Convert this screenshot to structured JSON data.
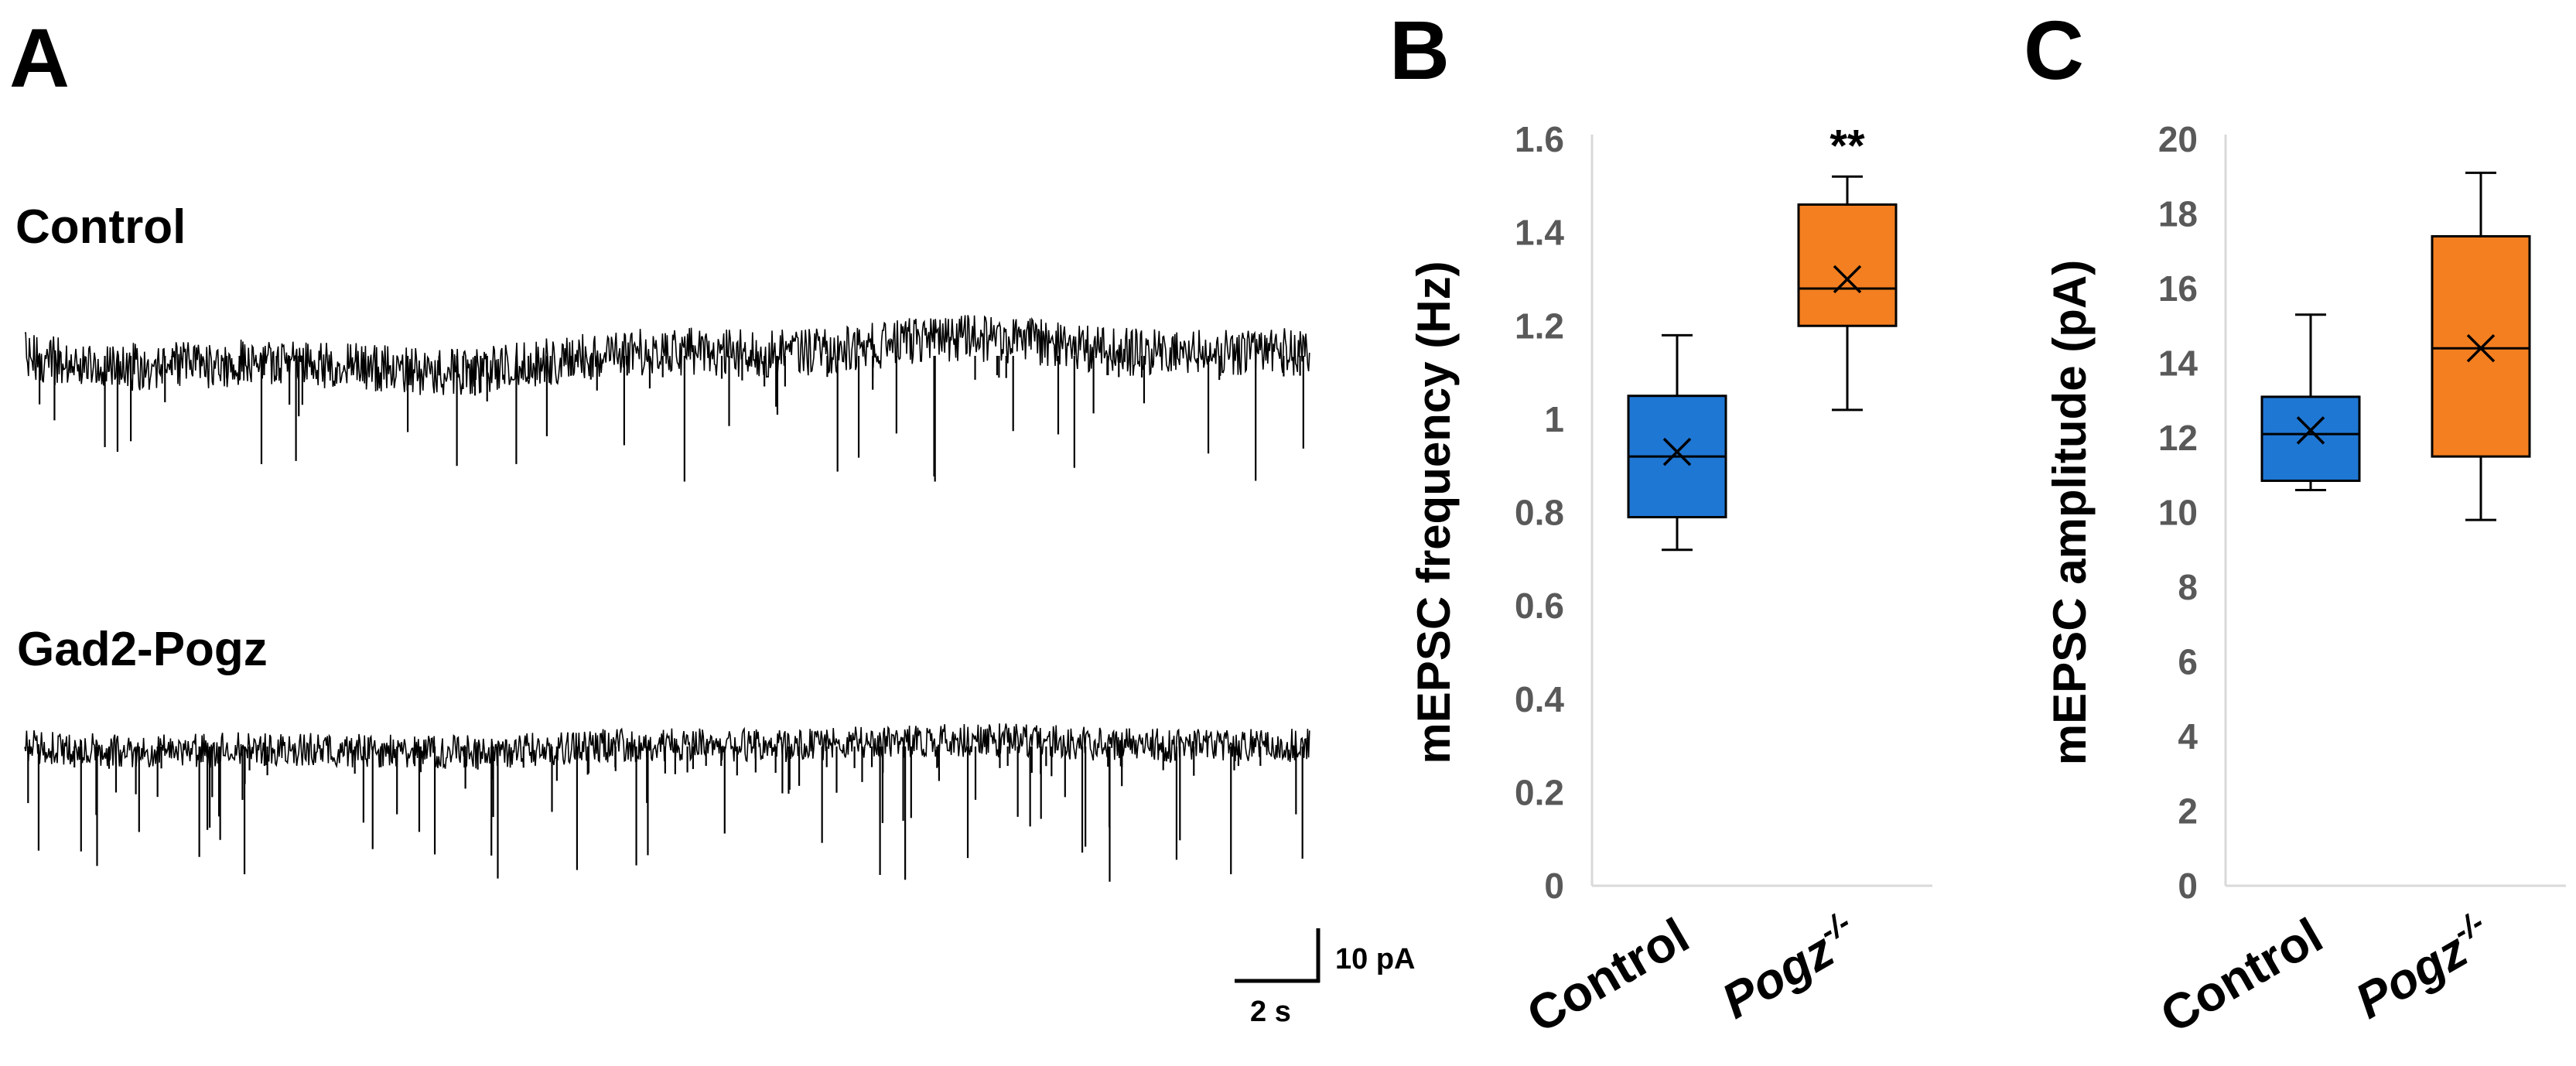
{
  "figure": {
    "panel_labels": [
      "A",
      "B",
      "C"
    ]
  },
  "traces": {
    "control_label": "Control",
    "gad2_label": "Gad2-Pogz",
    "scale_bar": {
      "amplitude_label": "10 pA",
      "time_label": "2 s"
    }
  },
  "chart_data": [
    {
      "panel": "B",
      "type": "box",
      "title": "",
      "ylabel": "mEPSC frequency (Hz)",
      "ylim": [
        0,
        1.6
      ],
      "yticks": [
        0,
        0.2,
        0.4,
        0.6,
        0.8,
        1,
        1.2,
        1.4,
        1.6
      ],
      "ytick_labels": [
        "0",
        "0.2",
        "0.4",
        "0.6",
        "0.8",
        "1",
        "1.2",
        "1.4",
        "1.6"
      ],
      "categories": [
        {
          "name": "Control",
          "base": "Control",
          "sup": "",
          "italic": false
        },
        {
          "name": "Pogz-/-",
          "base": "Pogz",
          "sup": "-/-",
          "italic": true
        }
      ],
      "series": [
        {
          "name": "Control",
          "color": "#1f77d4",
          "min": 0.72,
          "q1": 0.79,
          "median": 0.92,
          "q3": 1.05,
          "max": 1.18,
          "mean": 0.93
        },
        {
          "name": "Pogz-/-",
          "color": "#f47f20",
          "min": 1.02,
          "q1": 1.2,
          "median": 1.28,
          "q3": 1.46,
          "max": 1.52,
          "mean": 1.3
        }
      ],
      "annotations": [
        {
          "category": 1,
          "text": "**"
        }
      ]
    },
    {
      "panel": "C",
      "type": "box",
      "title": "",
      "ylabel": "mEPSC amplitude (pA)",
      "ylim": [
        0,
        20
      ],
      "yticks": [
        0,
        2,
        4,
        6,
        8,
        10,
        12,
        14,
        16,
        18,
        20
      ],
      "ytick_labels": [
        "0",
        "2",
        "4",
        "6",
        "8",
        "10",
        "12",
        "14",
        "16",
        "18",
        "20"
      ],
      "categories": [
        {
          "name": "Control",
          "base": "Control",
          "sup": "",
          "italic": false
        },
        {
          "name": "Pogz-/-",
          "base": "Pogz",
          "sup": "-/-",
          "italic": true
        }
      ],
      "series": [
        {
          "name": "Control",
          "color": "#1f77d4",
          "min": 10.6,
          "q1": 10.85,
          "median": 12.1,
          "q3": 13.1,
          "max": 15.3,
          "mean": 12.2
        },
        {
          "name": "Pogz-/-",
          "color": "#f47f20",
          "min": 9.8,
          "q1": 11.5,
          "median": 14.4,
          "q3": 17.4,
          "max": 19.1,
          "mean": 14.4
        }
      ],
      "annotations": []
    }
  ]
}
